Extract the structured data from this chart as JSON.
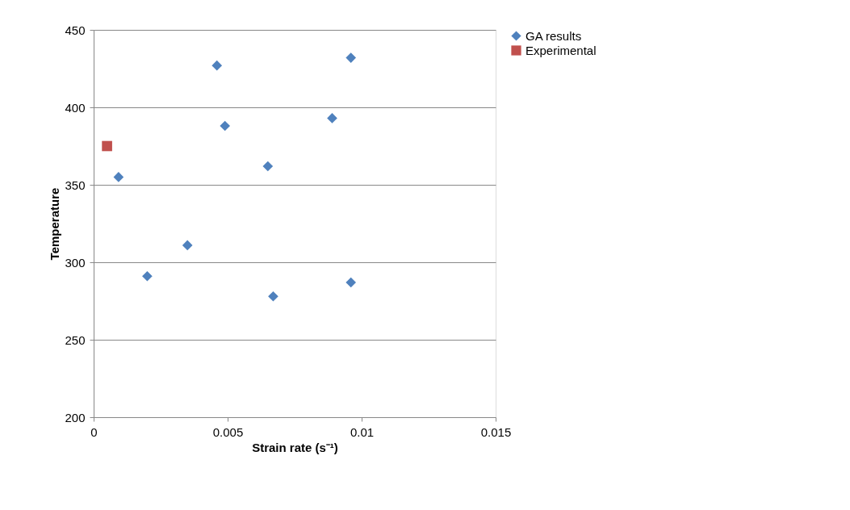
{
  "chart_data": {
    "type": "scatter",
    "xlabel": "Strain rate (s⁻¹)",
    "ylabel": "Temperature",
    "xlim": [
      0,
      0.015
    ],
    "xticks": [
      0,
      0.005,
      0.01,
      0.015
    ],
    "ylim": [
      200,
      450
    ],
    "yticks": [
      200,
      250,
      300,
      350,
      400,
      450
    ],
    "grid": "y",
    "legend": "right",
    "series": [
      {
        "name": "GA results",
        "color": "#4f81bd",
        "marker": "diamond",
        "x": [
          0.00093,
          0.002,
          0.0035,
          0.0046,
          0.0049,
          0.0065,
          0.0067,
          0.0089,
          0.0096,
          0.0096
        ],
        "values": [
          355,
          291,
          311,
          427,
          388,
          362,
          278,
          393,
          287,
          432
        ]
      },
      {
        "name": "Experimental",
        "color": "#c0504d",
        "marker": "square",
        "x": [
          0.0005
        ],
        "values": [
          375
        ]
      }
    ]
  }
}
